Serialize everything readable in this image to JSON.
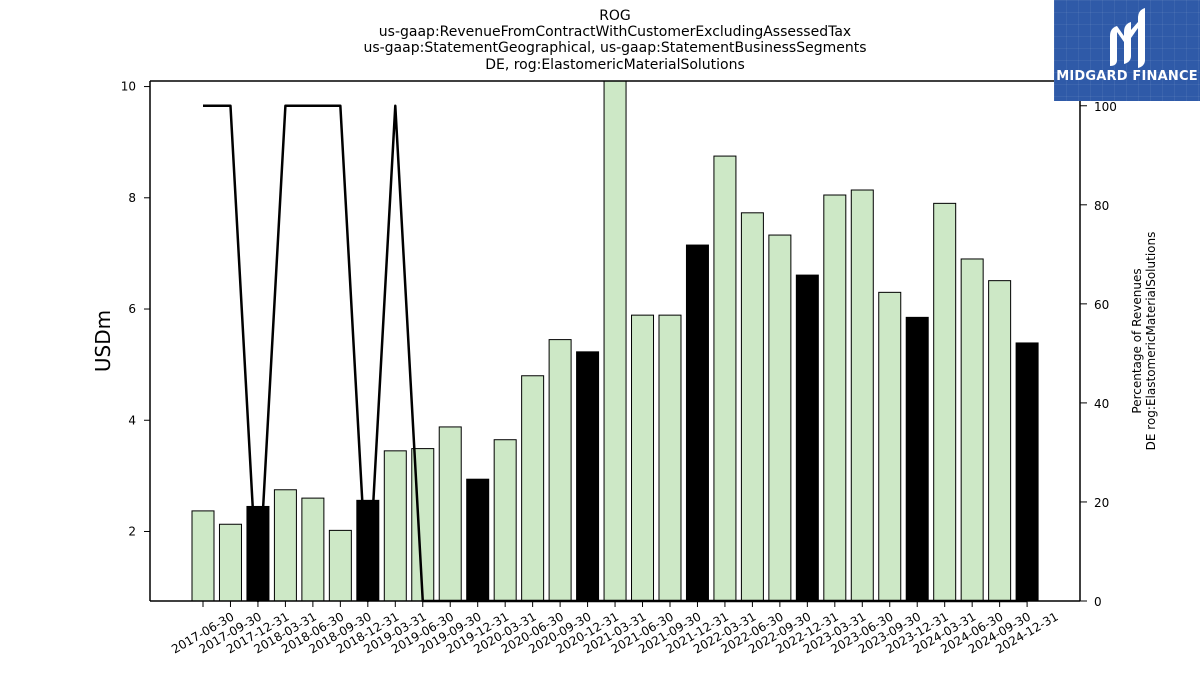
{
  "chart_data": {
    "type": "bar",
    "title_lines": [
      "ROG",
      "us-gaap:RevenueFromContractWithCustomerExcludingAssessedTax",
      "us-gaap:StatementGeographical, us-gaap:StatementBusinessSegments",
      "DE, rog:ElastomericMaterialSolutions"
    ],
    "ylabel": "USDm",
    "y2label_lines": [
      "Percentage of Revenues",
      "DE rog:ElastomericMaterialSolutions"
    ],
    "ylim": [
      0.75,
      10.1
    ],
    "y2lim": [
      0,
      105
    ],
    "yticks": [
      2,
      4,
      6,
      8,
      10
    ],
    "y2ticks": [
      0,
      20,
      40,
      60,
      80,
      100
    ],
    "categories": [
      "2017-06-30",
      "2017-09-30",
      "2017-12-31",
      "2018-03-31",
      "2018-06-30",
      "2018-09-30",
      "2018-12-31",
      "2019-03-31",
      "2019-06-30",
      "2019-09-30",
      "2019-12-31",
      "2020-03-31",
      "2020-06-30",
      "2020-09-30",
      "2020-12-31",
      "2021-03-31",
      "2021-06-30",
      "2021-09-30",
      "2021-12-31",
      "2022-03-31",
      "2022-06-30",
      "2022-09-30",
      "2022-12-31",
      "2023-03-31",
      "2023-06-30",
      "2023-09-30",
      "2023-12-31",
      "2024-03-31",
      "2024-06-30",
      "2024-09-30",
      "2024-12-31"
    ],
    "series": [
      {
        "type": "bar",
        "values": [
          2.37,
          2.13,
          2.45,
          2.75,
          2.6,
          2.02,
          2.56,
          3.45,
          3.49,
          3.88,
          2.94,
          3.65,
          4.8,
          5.45,
          5.23,
          10.1,
          5.89,
          5.89,
          7.15,
          8.75,
          7.73,
          7.33,
          6.61,
          8.05,
          8.14,
          6.3,
          5.85,
          7.9,
          6.9,
          6.51,
          5.39
        ]
      },
      {
        "type": "line",
        "values": [
          100,
          100,
          0,
          100,
          100,
          100,
          0,
          100,
          0,
          0,
          0,
          0,
          0,
          0,
          0,
          0,
          0,
          0,
          0,
          0,
          0,
          0,
          0,
          0,
          0,
          0,
          0,
          0,
          0,
          0,
          0
        ]
      }
    ],
    "annual_flags": [
      0,
      0,
      1,
      0,
      0,
      0,
      1,
      0,
      0,
      0,
      1,
      0,
      0,
      0,
      1,
      0,
      0,
      0,
      1,
      0,
      0,
      0,
      1,
      0,
      0,
      0,
      1,
      0,
      0,
      0,
      1
    ],
    "colors": {
      "quarter_bar": "#cde8c6",
      "annual_bar": "#000000",
      "bar_edge": "#000000",
      "line": "#000000"
    },
    "grid": false,
    "legend": "none"
  },
  "logo": {
    "brand_text": "MIDGARD FINANCE",
    "icon": "midgard-m-icon",
    "background": "#2f5aa8"
  }
}
